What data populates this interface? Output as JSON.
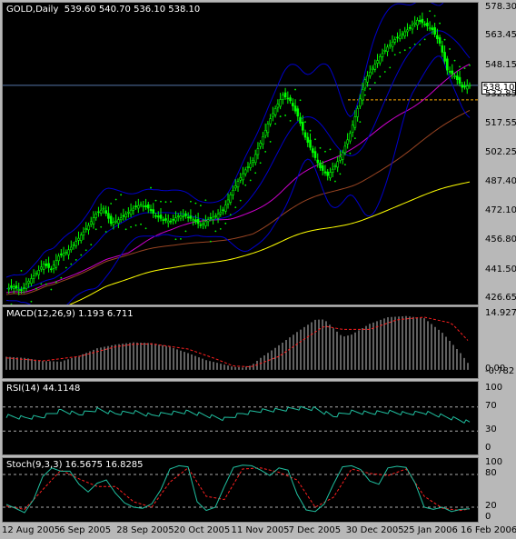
{
  "chart_data": [
    {
      "type": "candlestick",
      "title": "GOLD,Daily",
      "ohlc_label": "539.60 540.70 536.10 538.10",
      "current_price": "538.10",
      "ylim": [
        426.65,
        578.3
      ],
      "yticks": [
        "578.30",
        "563.45",
        "548.15",
        "532.85",
        "517.55",
        "502.25",
        "487.40",
        "472.10",
        "456.80",
        "441.50",
        "426.65"
      ],
      "xticks": [
        "12 Aug 2005",
        "6 Sep 2005",
        "28 Sep 2005",
        "20 Oct 2005",
        "11 Nov 2005",
        "7 Dec 2005",
        "30 Dec 2005",
        "25 Jan 2006",
        "16 Feb 2006"
      ],
      "grid": false,
      "colors": {
        "candle": "#00ff00",
        "bands": "#0000cc",
        "sar": "#00ff00",
        "ma_fast": "#cc00cc",
        "ma_mid": "#994422",
        "ma_slow": "#ffff00"
      },
      "close_path": [
        [
          0,
          432
        ],
        [
          3,
          433
        ],
        [
          6,
          431
        ],
        [
          9,
          436
        ],
        [
          12,
          440
        ],
        [
          15,
          445
        ],
        [
          18,
          442
        ],
        [
          21,
          449
        ],
        [
          24,
          451
        ],
        [
          27,
          455
        ],
        [
          30,
          460
        ],
        [
          33,
          465
        ],
        [
          36,
          471
        ],
        [
          39,
          474
        ],
        [
          42,
          466
        ],
        [
          45,
          468
        ],
        [
          48,
          471
        ],
        [
          51,
          474
        ],
        [
          54,
          476
        ],
        [
          57,
          474
        ],
        [
          60,
          470
        ],
        [
          63,
          468
        ],
        [
          66,
          467
        ],
        [
          69,
          470
        ],
        [
          72,
          470
        ],
        [
          75,
          468
        ],
        [
          78,
          465
        ],
        [
          81,
          468
        ],
        [
          84,
          470
        ],
        [
          87,
          473
        ],
        [
          90,
          481
        ],
        [
          93,
          488
        ],
        [
          96,
          494
        ],
        [
          99,
          499
        ],
        [
          102,
          508
        ],
        [
          105,
          518
        ],
        [
          108,
          526
        ],
        [
          111,
          533
        ],
        [
          114,
          530
        ],
        [
          117,
          522
        ],
        [
          120,
          511
        ],
        [
          123,
          503
        ],
        [
          126,
          495
        ],
        [
          129,
          491
        ],
        [
          132,
          496
        ],
        [
          135,
          503
        ],
        [
          138,
          513
        ],
        [
          141,
          526
        ],
        [
          144,
          541
        ],
        [
          147,
          547
        ],
        [
          150,
          553
        ],
        [
          153,
          558
        ],
        [
          156,
          562
        ],
        [
          159,
          565
        ],
        [
          162,
          568
        ],
        [
          165,
          572
        ],
        [
          168,
          570
        ],
        [
          171,
          567
        ],
        [
          174,
          560
        ],
        [
          177,
          546
        ],
        [
          180,
          543
        ],
        [
          183,
          537
        ],
        [
          186,
          538.1
        ]
      ],
      "indicators": [
        "Bollinger Bands",
        "Parabolic SAR",
        "Moving Averages"
      ]
    },
    {
      "type": "bar",
      "title": "MACD(12,26,9) 1.193 6.711",
      "ylim": [
        -0.782,
        14.927
      ],
      "yticks": [
        "14.927",
        "0.00",
        "-0.782"
      ],
      "histogram_path": [
        [
          0,
          3.5
        ],
        [
          10,
          3.2
        ],
        [
          20,
          2.4
        ],
        [
          30,
          2.2
        ],
        [
          40,
          3.8
        ],
        [
          50,
          5.8
        ],
        [
          60,
          6.8
        ],
        [
          70,
          7.4
        ],
        [
          80,
          7.2
        ],
        [
          90,
          6.2
        ],
        [
          100,
          4.5
        ],
        [
          110,
          2.6
        ],
        [
          120,
          1.4
        ],
        [
          125,
          0.8
        ],
        [
          130,
          0.6
        ],
        [
          135,
          1.2
        ],
        [
          140,
          3.2
        ],
        [
          150,
          6.6
        ],
        [
          160,
          10.2
        ],
        [
          170,
          13.5
        ],
        [
          175,
          13.6
        ],
        [
          180,
          11.2
        ],
        [
          185,
          8.9
        ],
        [
          190,
          9.5
        ],
        [
          200,
          12.4
        ],
        [
          210,
          14.2
        ],
        [
          220,
          14.5
        ],
        [
          230,
          13.9
        ],
        [
          240,
          10.0
        ],
        [
          250,
          4.5
        ],
        [
          255,
          1.2
        ]
      ],
      "signal_path": [
        [
          0,
          3.2
        ],
        [
          20,
          2.4
        ],
        [
          40,
          3.6
        ],
        [
          60,
          6.2
        ],
        [
          70,
          6.9
        ],
        [
          80,
          7.0
        ],
        [
          100,
          5.6
        ],
        [
          115,
          3.0
        ],
        [
          125,
          1.0
        ],
        [
          135,
          0.8
        ],
        [
          150,
          3.6
        ],
        [
          165,
          8.6
        ],
        [
          175,
          11.8
        ],
        [
          185,
          10.9
        ],
        [
          200,
          10.9
        ],
        [
          215,
          13.5
        ],
        [
          230,
          14.2
        ],
        [
          245,
          12.6
        ],
        [
          255,
          7.4
        ]
      ]
    },
    {
      "type": "line",
      "title": "RSI(14) 44.1148",
      "ylim": [
        0,
        100
      ],
      "yticks": [
        "100",
        "70",
        "30",
        "0"
      ],
      "levels": [
        70,
        30
      ],
      "series_path": [
        [
          0,
          55
        ],
        [
          10,
          52
        ],
        [
          20,
          54
        ],
        [
          30,
          64
        ],
        [
          40,
          58
        ],
        [
          50,
          66
        ],
        [
          60,
          59
        ],
        [
          70,
          62
        ],
        [
          80,
          56
        ],
        [
          90,
          60
        ],
        [
          100,
          62
        ],
        [
          110,
          56
        ],
        [
          120,
          50
        ],
        [
          130,
          59
        ],
        [
          140,
          64
        ],
        [
          150,
          65
        ],
        [
          160,
          68
        ],
        [
          170,
          67
        ],
        [
          180,
          55
        ],
        [
          190,
          62
        ],
        [
          200,
          60
        ],
        [
          210,
          62
        ],
        [
          220,
          59
        ],
        [
          230,
          61
        ],
        [
          240,
          55
        ],
        [
          250,
          48
        ],
        [
          255,
          44
        ]
      ]
    },
    {
      "type": "line",
      "title": "Stoch(9,3,3) 16.5675 16.8285",
      "ylim": [
        0,
        100
      ],
      "yticks": [
        "100",
        "80",
        "20",
        "0"
      ],
      "levels": [
        80,
        20
      ],
      "k_path": [
        [
          0,
          25
        ],
        [
          5,
          18
        ],
        [
          10,
          10
        ],
        [
          15,
          34
        ],
        [
          20,
          76
        ],
        [
          25,
          92
        ],
        [
          30,
          86
        ],
        [
          35,
          86
        ],
        [
          40,
          62
        ],
        [
          45,
          48
        ],
        [
          50,
          64
        ],
        [
          55,
          70
        ],
        [
          60,
          46
        ],
        [
          65,
          28
        ],
        [
          70,
          20
        ],
        [
          75,
          18
        ],
        [
          80,
          26
        ],
        [
          85,
          52
        ],
        [
          90,
          90
        ],
        [
          95,
          96
        ],
        [
          100,
          94
        ],
        [
          105,
          30
        ],
        [
          110,
          14
        ],
        [
          115,
          20
        ],
        [
          120,
          58
        ],
        [
          125,
          93
        ],
        [
          130,
          97
        ],
        [
          135,
          96
        ],
        [
          140,
          88
        ],
        [
          145,
          78
        ],
        [
          150,
          92
        ],
        [
          155,
          88
        ],
        [
          160,
          44
        ],
        [
          165,
          15
        ],
        [
          170,
          12
        ],
        [
          175,
          26
        ],
        [
          180,
          62
        ],
        [
          185,
          94
        ],
        [
          190,
          96
        ],
        [
          195,
          89
        ],
        [
          200,
          68
        ],
        [
          205,
          62
        ],
        [
          210,
          92
        ],
        [
          215,
          95
        ],
        [
          220,
          93
        ],
        [
          225,
          64
        ],
        [
          230,
          20
        ],
        [
          235,
          16
        ],
        [
          240,
          20
        ],
        [
          245,
          12
        ],
        [
          250,
          16
        ],
        [
          255,
          17
        ]
      ],
      "d_path": [
        [
          0,
          22
        ],
        [
          10,
          16
        ],
        [
          20,
          52
        ],
        [
          30,
          88
        ],
        [
          40,
          72
        ],
        [
          50,
          58
        ],
        [
          60,
          58
        ],
        [
          70,
          30
        ],
        [
          80,
          20
        ],
        [
          90,
          66
        ],
        [
          100,
          92
        ],
        [
          110,
          40
        ],
        [
          120,
          34
        ],
        [
          130,
          90
        ],
        [
          140,
          92
        ],
        [
          150,
          84
        ],
        [
          160,
          70
        ],
        [
          170,
          20
        ],
        [
          180,
          38
        ],
        [
          190,
          90
        ],
        [
          200,
          82
        ],
        [
          210,
          78
        ],
        [
          220,
          90
        ],
        [
          230,
          40
        ],
        [
          240,
          18
        ],
        [
          250,
          14
        ],
        [
          255,
          17
        ]
      ]
    }
  ]
}
